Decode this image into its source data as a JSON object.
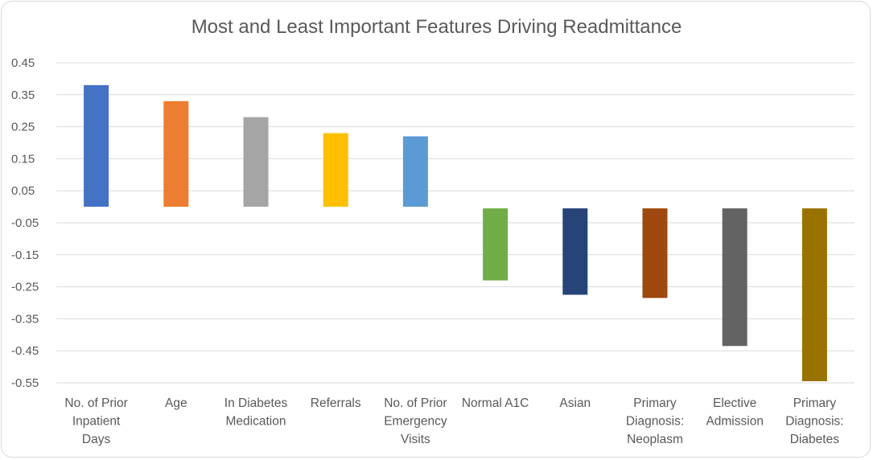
{
  "chart_data": {
    "type": "bar",
    "title": "Most and Least Important Features Driving Readmittance",
    "xlabel": "",
    "ylabel": "",
    "ylim": [
      -0.55,
      0.45
    ],
    "y_ticks": [
      "0.45",
      "0.35",
      "0.25",
      "0.15",
      "0.05",
      "-0.05",
      "-0.15",
      "-0.25",
      "-0.35",
      "-0.45",
      "-0.55"
    ],
    "grid": true,
    "legend": "none",
    "categories": [
      "No. of Prior Inpatient Days",
      "Age",
      "In Diabetes Medication",
      "Referrals",
      "No. of Prior Emergency Visits",
      "Normal A1C",
      "Asian",
      "Primary Diagnosis: Neoplasm",
      "Elective Admission",
      "Primary Diagnosis: Diabetes"
    ],
    "category_lines": [
      [
        "No. of Prior",
        "Inpatient",
        "Days"
      ],
      [
        "Age"
      ],
      [
        "In Diabetes",
        "Medication"
      ],
      [
        "Referrals"
      ],
      [
        "No. of Prior",
        "Emergency",
        "Visits"
      ],
      [
        "Normal A1C"
      ],
      [
        "Asian"
      ],
      [
        "Primary",
        "Diagnosis:",
        "Neoplasm"
      ],
      [
        "Elective",
        "Admission"
      ],
      [
        "Primary",
        "Diagnosis:",
        "Diabetes"
      ]
    ],
    "values": [
      0.38,
      0.33,
      0.28,
      0.23,
      0.22,
      -0.23,
      -0.275,
      -0.285,
      -0.435,
      -0.545
    ],
    "colors": [
      "#4472c4",
      "#ed7d31",
      "#a5a5a5",
      "#ffc000",
      "#5b9bd5",
      "#70ad47",
      "#264478",
      "#9e480e",
      "#636363",
      "#997300"
    ]
  }
}
